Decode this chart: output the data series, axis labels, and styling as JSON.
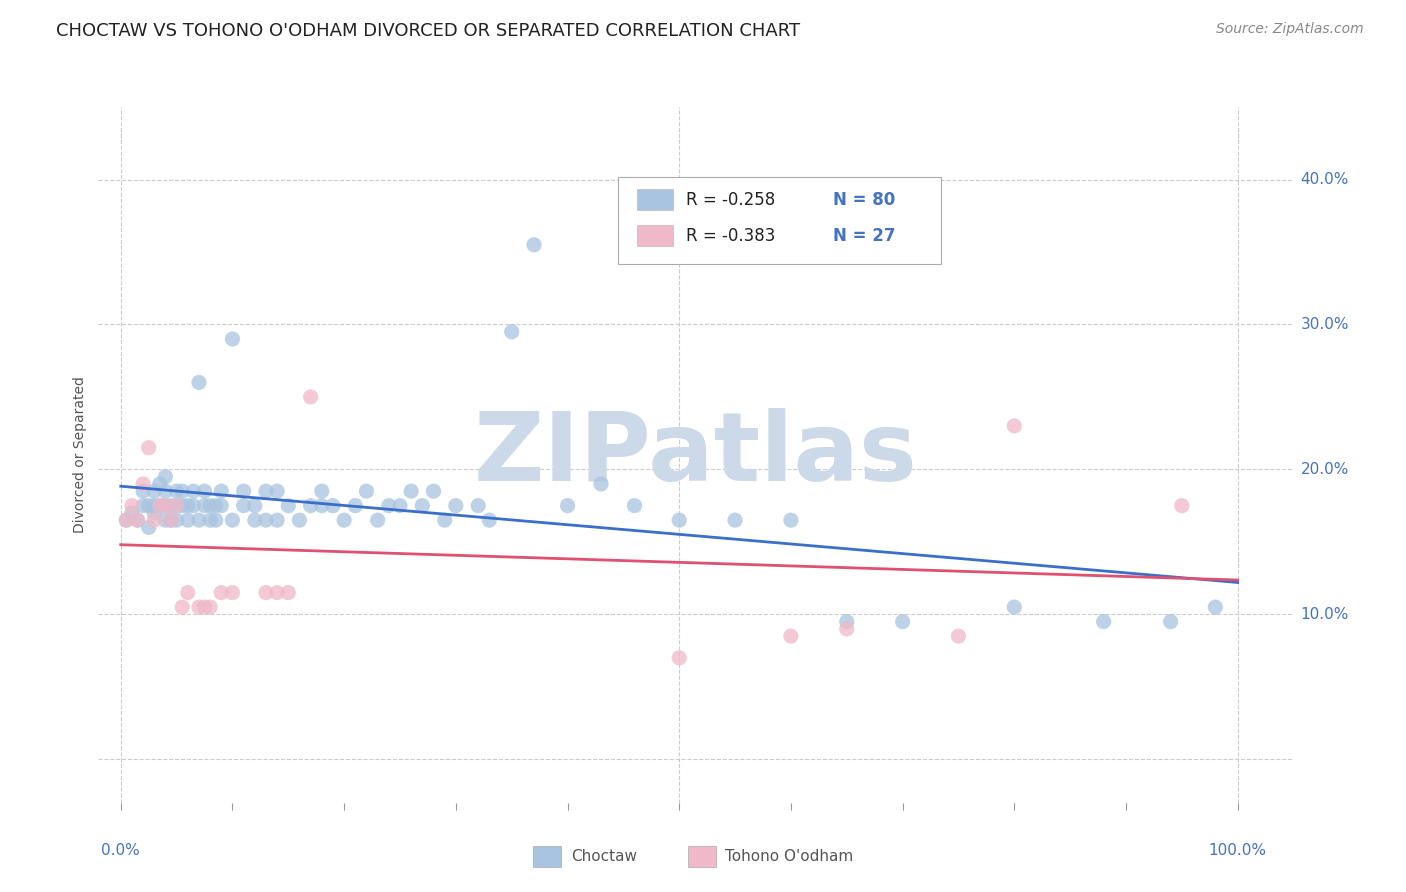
{
  "title": "CHOCTAW VS TOHONO O'ODHAM DIVORCED OR SEPARATED CORRELATION CHART",
  "source": "Source: ZipAtlas.com",
  "ylabel": "Divorced or Separated",
  "xlim": [
    -0.02,
    1.05
  ],
  "ylim": [
    -0.03,
    0.45
  ],
  "background_color": "#ffffff",
  "grid_color": "#cccccc",
  "watermark_text": "ZIPatlas",
  "watermark_color": "#ccd9e8",
  "legend_r1": "R = -0.258",
  "legend_n1": "N = 80",
  "legend_r2": "R = -0.383",
  "legend_n2": "N = 27",
  "choctaw_color": "#a8c4e0",
  "choctaw_line_color": "#3a6fc9",
  "tohono_color": "#f0b8c8",
  "tohono_line_color": "#e05070",
  "choctaw_x": [
    0.005,
    0.01,
    0.015,
    0.02,
    0.02,
    0.025,
    0.025,
    0.03,
    0.03,
    0.03,
    0.035,
    0.035,
    0.04,
    0.04,
    0.04,
    0.04,
    0.045,
    0.045,
    0.05,
    0.05,
    0.05,
    0.055,
    0.055,
    0.06,
    0.06,
    0.065,
    0.065,
    0.07,
    0.07,
    0.075,
    0.075,
    0.08,
    0.08,
    0.085,
    0.085,
    0.09,
    0.09,
    0.1,
    0.1,
    0.11,
    0.11,
    0.12,
    0.12,
    0.13,
    0.13,
    0.14,
    0.14,
    0.15,
    0.16,
    0.17,
    0.18,
    0.18,
    0.19,
    0.2,
    0.21,
    0.22,
    0.23,
    0.24,
    0.25,
    0.26,
    0.27,
    0.28,
    0.29,
    0.3,
    0.32,
    0.33,
    0.35,
    0.37,
    0.4,
    0.43,
    0.46,
    0.5,
    0.55,
    0.6,
    0.65,
    0.7,
    0.8,
    0.88,
    0.94,
    0.98
  ],
  "choctaw_y": [
    0.165,
    0.17,
    0.165,
    0.175,
    0.185,
    0.16,
    0.175,
    0.17,
    0.175,
    0.185,
    0.175,
    0.19,
    0.165,
    0.175,
    0.185,
    0.195,
    0.165,
    0.175,
    0.165,
    0.175,
    0.185,
    0.175,
    0.185,
    0.165,
    0.175,
    0.175,
    0.185,
    0.165,
    0.26,
    0.175,
    0.185,
    0.165,
    0.175,
    0.165,
    0.175,
    0.175,
    0.185,
    0.165,
    0.29,
    0.175,
    0.185,
    0.165,
    0.175,
    0.165,
    0.185,
    0.165,
    0.185,
    0.175,
    0.165,
    0.175,
    0.175,
    0.185,
    0.175,
    0.165,
    0.175,
    0.185,
    0.165,
    0.175,
    0.175,
    0.185,
    0.175,
    0.185,
    0.165,
    0.175,
    0.175,
    0.165,
    0.295,
    0.355,
    0.175,
    0.19,
    0.175,
    0.165,
    0.165,
    0.165,
    0.095,
    0.095,
    0.105,
    0.095,
    0.095,
    0.105
  ],
  "tohono_x": [
    0.005,
    0.01,
    0.015,
    0.02,
    0.025,
    0.03,
    0.035,
    0.04,
    0.045,
    0.05,
    0.055,
    0.06,
    0.07,
    0.075,
    0.08,
    0.09,
    0.1,
    0.13,
    0.14,
    0.15,
    0.17,
    0.5,
    0.6,
    0.65,
    0.75,
    0.8,
    0.95
  ],
  "tohono_y": [
    0.165,
    0.175,
    0.165,
    0.19,
    0.215,
    0.165,
    0.175,
    0.175,
    0.165,
    0.175,
    0.105,
    0.115,
    0.105,
    0.105,
    0.105,
    0.115,
    0.115,
    0.115,
    0.115,
    0.115,
    0.25,
    0.07,
    0.085,
    0.09,
    0.085,
    0.23,
    0.175
  ],
  "title_fontsize": 13,
  "axis_label_fontsize": 10,
  "tick_fontsize": 11,
  "source_fontsize": 10
}
